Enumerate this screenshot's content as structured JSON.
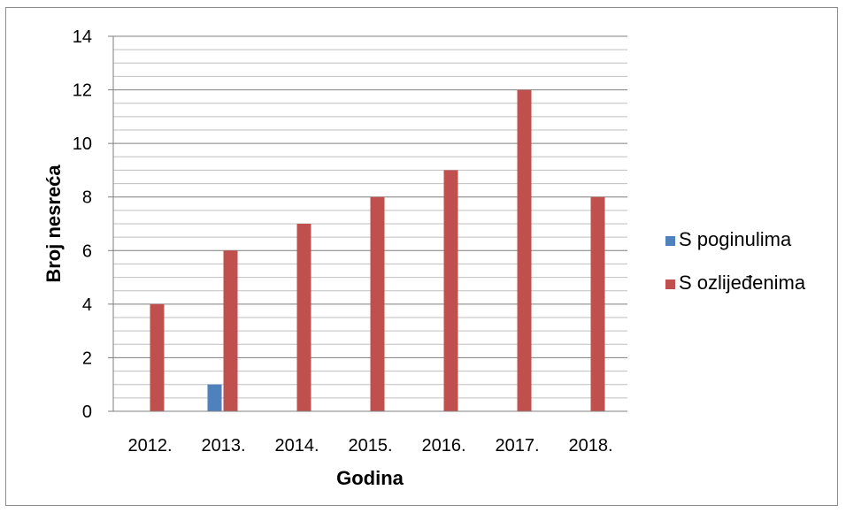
{
  "chart_data": {
    "type": "bar",
    "title": "",
    "xlabel": "Godina",
    "ylabel": "Broj nesreća",
    "categories": [
      "2012.",
      "2013.",
      "2014.",
      "2015.",
      "2016.",
      "2017.",
      "2018."
    ],
    "series": [
      {
        "name": "S poginulima",
        "color": "#4f81bd",
        "values": [
          0,
          1,
          0,
          0,
          0,
          0,
          0
        ]
      },
      {
        "name": "S ozlijeđenima",
        "color": "#c0504d",
        "values": [
          4,
          6,
          7,
          8,
          9,
          12,
          8
        ]
      }
    ],
    "ylim": [
      0,
      14
    ],
    "yticks": [
      0,
      2,
      4,
      6,
      8,
      10,
      12,
      14
    ],
    "minor_grid_step": 0.5,
    "grid": true,
    "legend_position": "right"
  }
}
